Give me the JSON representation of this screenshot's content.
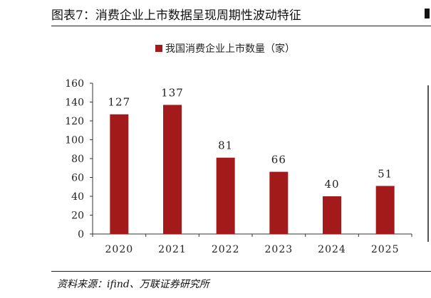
{
  "header": {
    "title": "图表7：消费企业上市数据呈现周期性波动特征"
  },
  "footer": {
    "source": "资料来源：ifind、万联证券研究所"
  },
  "colors": {
    "bar": "#a31a1a",
    "axis": "#333333",
    "text": "#222222"
  },
  "chart_data": {
    "type": "bar",
    "categories": [
      "2020",
      "2021",
      "2022",
      "2023",
      "2024",
      "2025"
    ],
    "series": [
      {
        "name": "我国消费企业上市数量（家）",
        "values": [
          127,
          137,
          81,
          66,
          40,
          51
        ]
      }
    ],
    "ylim": [
      0,
      160
    ],
    "yticks": [
      0,
      20,
      40,
      60,
      80,
      100,
      120,
      140,
      160
    ],
    "data_labels": true,
    "legend": "top-center",
    "grid": false
  }
}
